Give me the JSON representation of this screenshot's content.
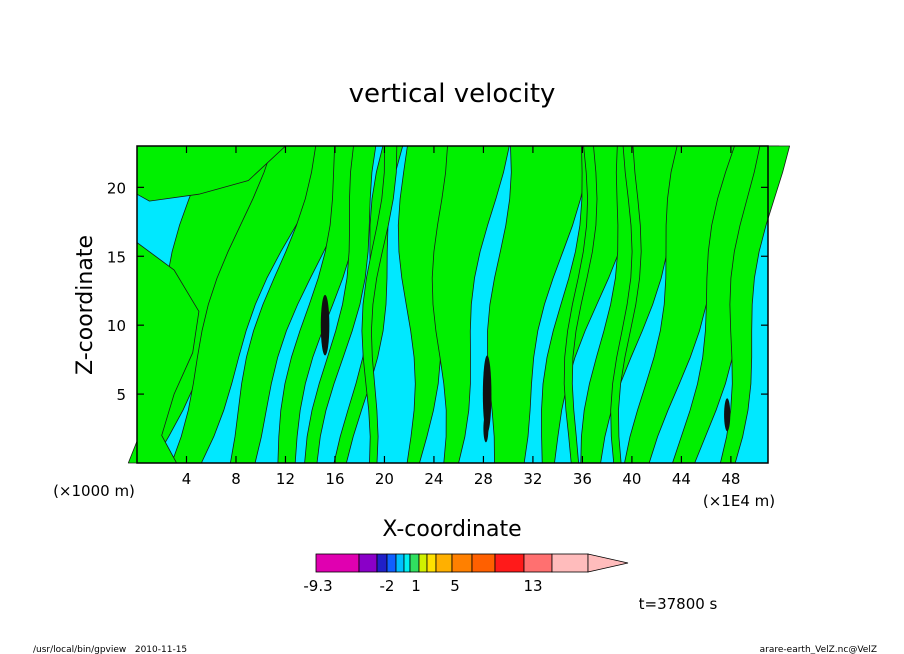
{
  "chart_data": {
    "type": "heatmap",
    "title": "vertical velocity",
    "xlabel": "X-coordinate",
    "ylabel": "Z-coordinate",
    "x_unit_note": "(×1E4 m)",
    "y_unit_note": "(×1000 m)",
    "xlim": [
      0,
      51
    ],
    "ylim": [
      0,
      23
    ],
    "xticks": [
      4,
      8,
      12,
      16,
      20,
      24,
      28,
      32,
      36,
      40,
      44,
      48
    ],
    "yticks": [
      5,
      10,
      15,
      20
    ],
    "colorbar": {
      "ticks": [
        "-9.3",
        "-2",
        "1",
        "5",
        "13"
      ],
      "colors": [
        "#e000b0",
        "#8a00c8",
        "#2020c8",
        "#1060ff",
        "#00bfff",
        "#00f0f0",
        "#30e060",
        "#d0f000",
        "#ffe000",
        "#ffb000",
        "#ff8000",
        "#ff6000",
        "#ff1a1a",
        "#ff7070",
        "#ffbcbc"
      ],
      "extend": "max"
    },
    "contour_fill": {
      "negative_small": "#00e8ff",
      "positive_small": "#00f000",
      "strong_core": "#111111"
    },
    "annotation": "t=37800 s",
    "grid": false
  },
  "footer": {
    "left": "/usr/local/bin/gpview   2010-11-15",
    "right": "arare-earth_VelZ.nc@VelZ"
  }
}
